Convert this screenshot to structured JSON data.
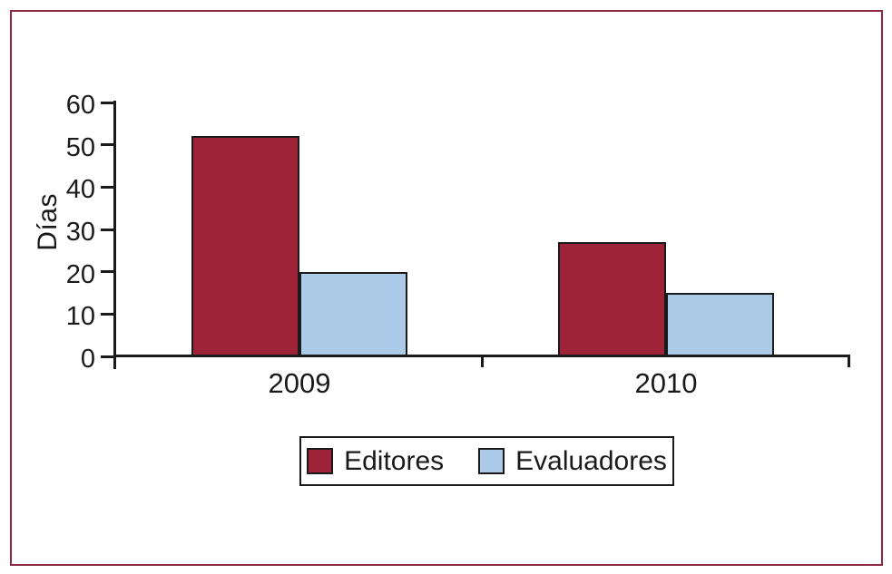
{
  "chart_data": {
    "type": "bar",
    "title": "",
    "xlabel": "",
    "ylabel": "Días",
    "categories": [
      "2009",
      "2010"
    ],
    "series": [
      {
        "name": "Editores",
        "color": "#9e2339",
        "values": [
          52,
          27
        ]
      },
      {
        "name": "Evaluadores",
        "color": "#accbe9",
        "values": [
          20,
          15
        ]
      }
    ],
    "ylim": [
      0,
      60
    ],
    "yticks": [
      0,
      10,
      20,
      30,
      40,
      50,
      60
    ],
    "grid": false,
    "legend_position": "bottom-center"
  },
  "colors": {
    "frame_border": "#8d2943",
    "axis": "#1a1a1a",
    "text": "#1a1a1a",
    "background": "#ffffff"
  }
}
